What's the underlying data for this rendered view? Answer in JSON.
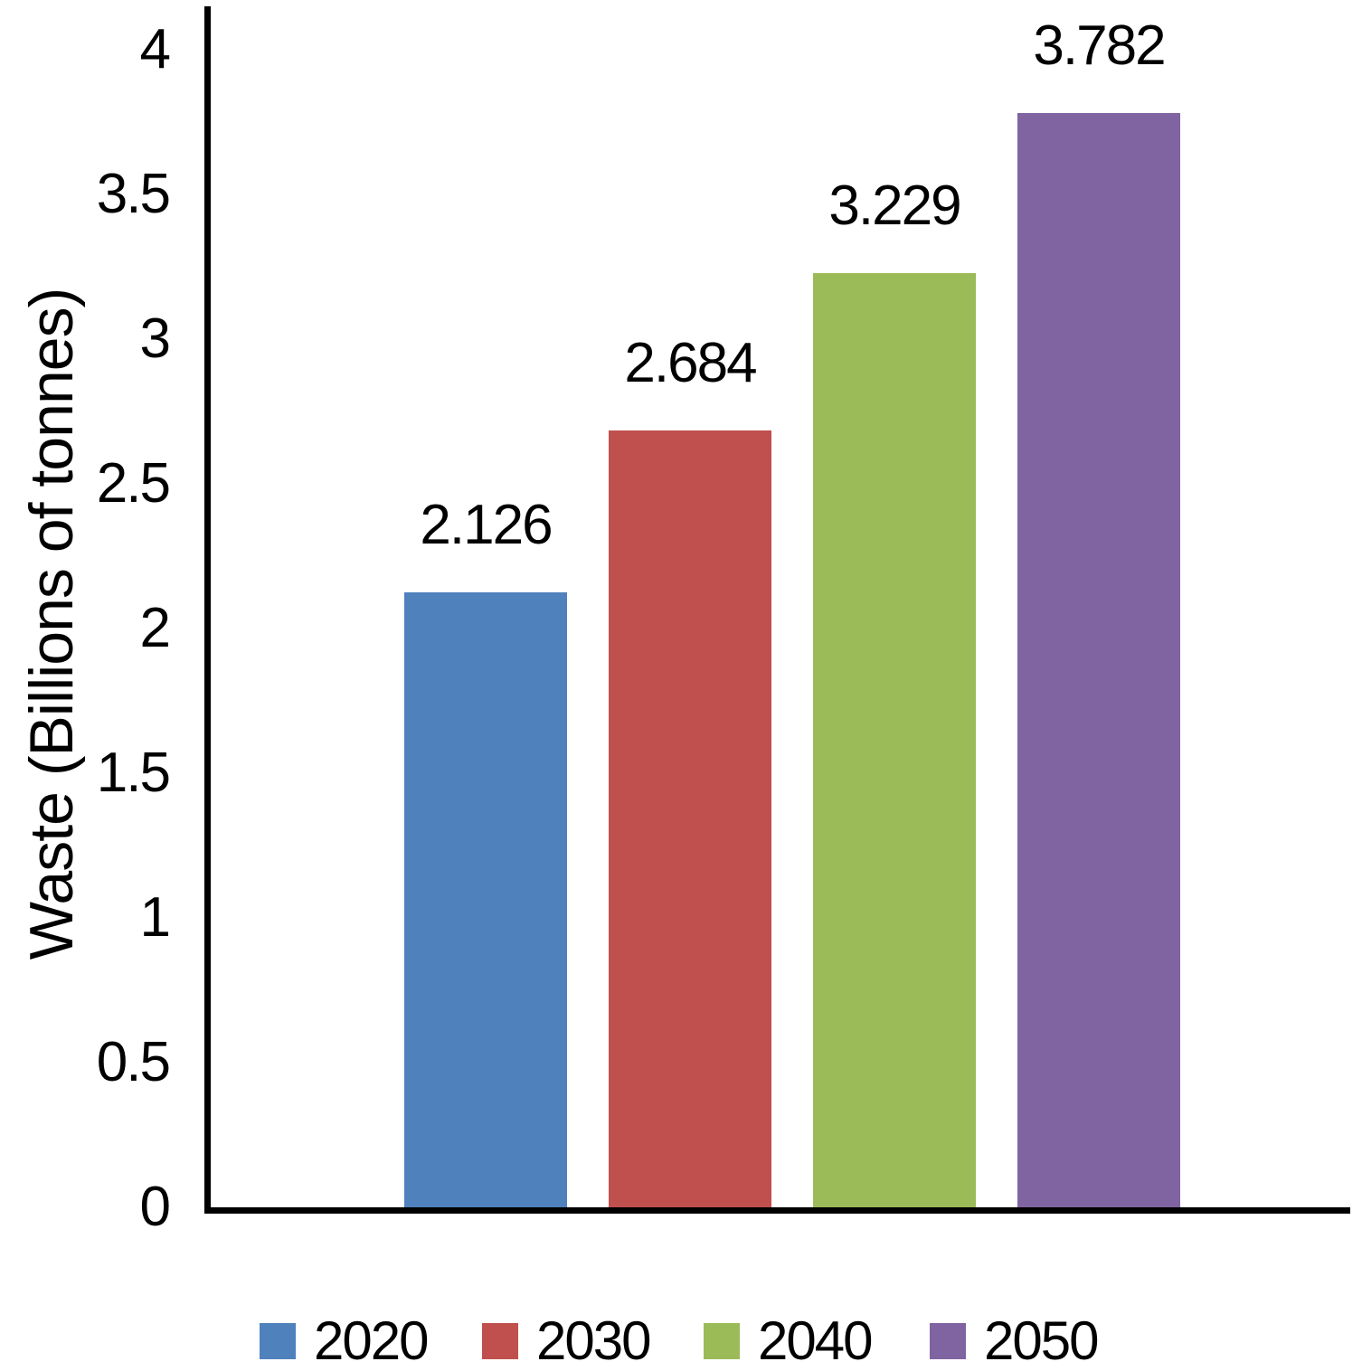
{
  "chart_data": {
    "type": "bar",
    "title": "",
    "xlabel": "",
    "ylabel": "Waste (Billions of tonnes)",
    "categories": [
      "2020",
      "2030",
      "2040",
      "2050"
    ],
    "values": [
      2.126,
      2.684,
      3.229,
      3.782
    ],
    "value_labels": [
      "2.126",
      "2.684",
      "3.229",
      "3.782"
    ],
    "colors": [
      "#4F81BD",
      "#C0504D",
      "#9BBB59",
      "#8064A2"
    ],
    "ylim": [
      0,
      4
    ],
    "ytick_step": 0.5,
    "ytick_labels": [
      "0",
      "0.5",
      "1",
      "1.5",
      "2",
      "2.5",
      "3",
      "3.5",
      "4"
    ],
    "grid": false,
    "data_labels": true,
    "legend": {
      "position": "bottom",
      "entries": [
        "2020",
        "2030",
        "2040",
        "2050"
      ]
    },
    "axis_color": "#000000",
    "text_color": "#000000"
  }
}
